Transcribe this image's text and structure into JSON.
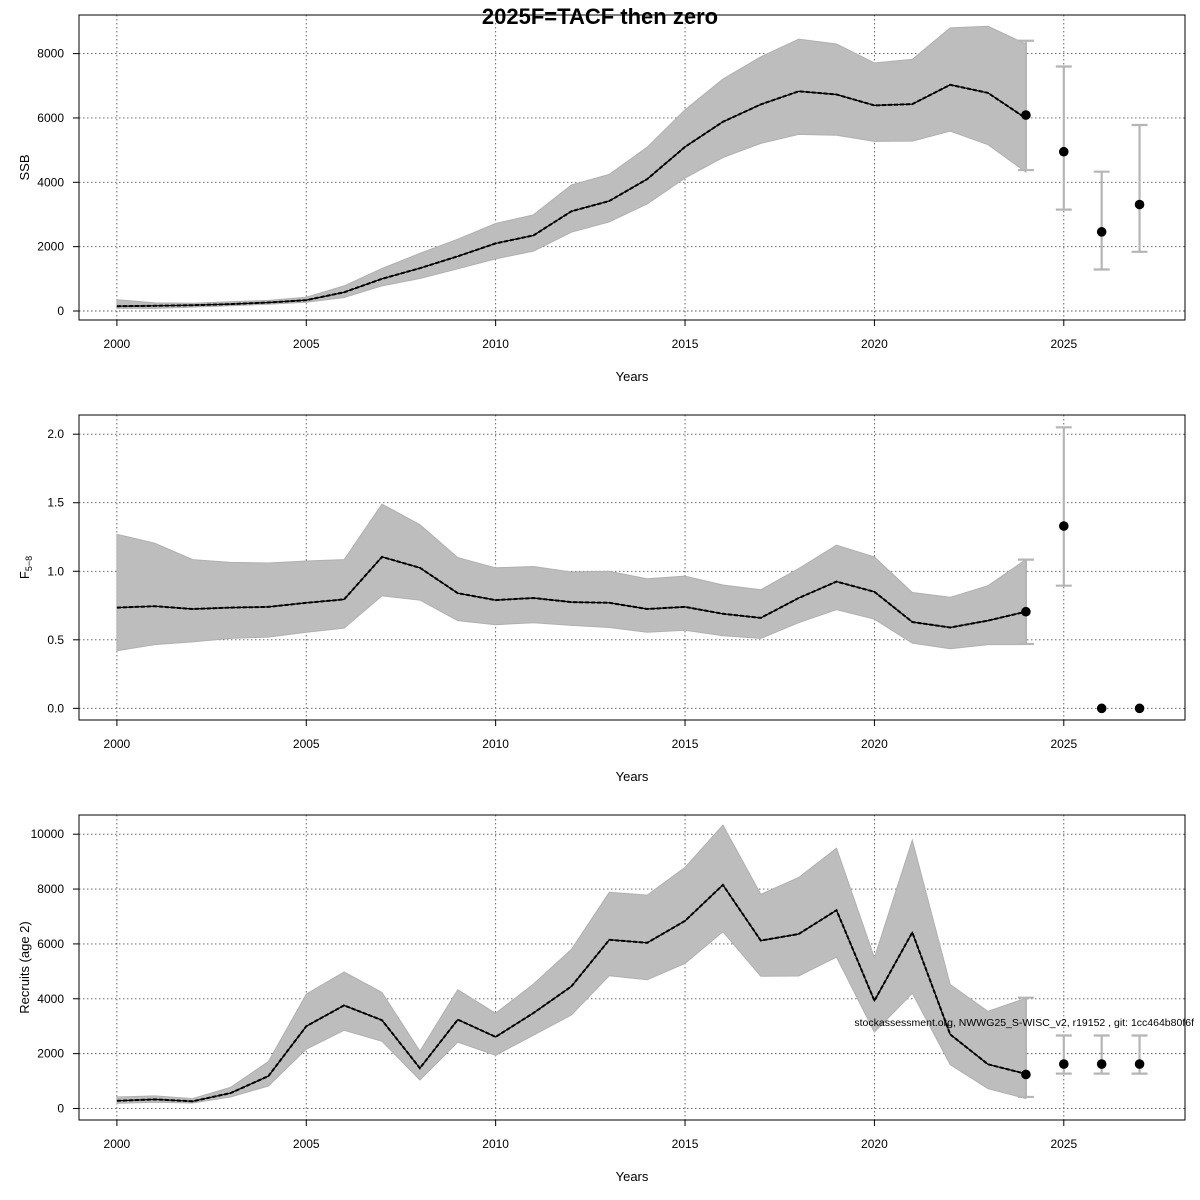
{
  "title": "2025F=TACF then zero",
  "footnote": "stockassessment.org, NWWG25_S-WISC_v2, r19152 , git: 1cc464b80f6f",
  "chart_data": [
    {
      "type": "line",
      "id": "ssb",
      "ylabel": "SSB",
      "xlabel": "Years",
      "xlim": [
        1999,
        2028.2
      ],
      "ylim": [
        -280,
        9200
      ],
      "xticks": [
        2000,
        2005,
        2010,
        2015,
        2020,
        2025
      ],
      "yticks": [
        0,
        2000,
        4000,
        6000,
        8000
      ],
      "ytick_labels": [
        "0",
        "2000",
        "4000",
        "6000",
        "8000"
      ],
      "grid": true,
      "x": [
        2000,
        2001,
        2002,
        2003,
        2004,
        2005,
        2006,
        2007,
        2008,
        2009,
        2010,
        2011,
        2012,
        2013,
        2014,
        2015,
        2016,
        2017,
        2018,
        2019,
        2020,
        2021,
        2022,
        2023,
        2024
      ],
      "estimate": [
        150,
        160,
        180,
        215,
        265,
        340,
        580,
        1000,
        1330,
        1700,
        2100,
        2350,
        3100,
        3420,
        4100,
        5100,
        5880,
        6420,
        6830,
        6730,
        6390,
        6430,
        7030,
        6780,
        5990
      ],
      "upper": [
        350,
        250,
        240,
        290,
        330,
        430,
        780,
        1320,
        1790,
        2230,
        2720,
        2990,
        3920,
        4250,
        5090,
        6250,
        7210,
        7900,
        8450,
        8300,
        7710,
        7820,
        8800,
        8850,
        8300
      ],
      "lower": [
        80,
        80,
        120,
        165,
        210,
        270,
        420,
        780,
        1010,
        1310,
        1620,
        1860,
        2450,
        2770,
        3330,
        4130,
        4770,
        5210,
        5490,
        5460,
        5270,
        5280,
        5590,
        5170,
        4320
      ],
      "forecast": {
        "x": [
          2024,
          2025,
          2026,
          2027
        ],
        "median": [
          6090,
          4950,
          2460,
          3310
        ],
        "low": [
          4380,
          3150,
          1290,
          1840
        ],
        "high": [
          8400,
          7600,
          4330,
          5780
        ]
      }
    },
    {
      "type": "line",
      "id": "fbar",
      "ylabel": "F̄5-8",
      "ylabel_main": "F",
      "ylabel_sub": "5−8",
      "xlabel": "Years",
      "xlim": [
        1999,
        2028.2
      ],
      "ylim": [
        -0.085,
        2.14
      ],
      "xticks": [
        2000,
        2005,
        2010,
        2015,
        2020,
        2025
      ],
      "yticks": [
        0.0,
        0.5,
        1.0,
        1.5,
        2.0
      ],
      "ytick_labels": [
        "0.0",
        "0.5",
        "1.0",
        "1.5",
        "2.0"
      ],
      "grid": true,
      "x": [
        2000,
        2001,
        2002,
        2003,
        2004,
        2005,
        2006,
        2007,
        2008,
        2009,
        2010,
        2011,
        2012,
        2013,
        2014,
        2015,
        2016,
        2017,
        2018,
        2019,
        2020,
        2021,
        2022,
        2023,
        2024
      ],
      "estimate": [
        0.735,
        0.745,
        0.725,
        0.735,
        0.74,
        0.77,
        0.795,
        1.105,
        1.025,
        0.84,
        0.79,
        0.805,
        0.775,
        0.77,
        0.725,
        0.74,
        0.69,
        0.66,
        0.805,
        0.925,
        0.85,
        0.63,
        0.59,
        0.64,
        0.705
      ],
      "upper": [
        1.27,
        1.205,
        1.085,
        1.065,
        1.06,
        1.075,
        1.085,
        1.49,
        1.34,
        1.1,
        1.025,
        1.035,
        0.995,
        1.0,
        0.945,
        0.965,
        0.9,
        0.865,
        1.02,
        1.19,
        1.105,
        0.845,
        0.81,
        0.895,
        1.085
      ],
      "lower": [
        0.42,
        0.465,
        0.485,
        0.51,
        0.52,
        0.555,
        0.585,
        0.82,
        0.79,
        0.64,
        0.61,
        0.625,
        0.605,
        0.59,
        0.555,
        0.57,
        0.53,
        0.51,
        0.625,
        0.72,
        0.65,
        0.475,
        0.435,
        0.465,
        0.465
      ],
      "forecast": {
        "x": [
          2024,
          2025,
          2026,
          2027
        ],
        "median": [
          0.705,
          1.33,
          0.0,
          0.0
        ],
        "low": [
          0.47,
          0.895,
          0.0,
          0.0
        ],
        "high": [
          1.085,
          2.05,
          0.0,
          0.0
        ]
      }
    },
    {
      "type": "line",
      "id": "recruits",
      "ylabel": "Recruits (age 2)",
      "xlabel": "Years",
      "xlim": [
        1999,
        2028.2
      ],
      "ylim": [
        -420,
        10700
      ],
      "xticks": [
        2000,
        2005,
        2010,
        2015,
        2020,
        2025
      ],
      "yticks": [
        0,
        2000,
        4000,
        6000,
        8000,
        10000
      ],
      "ytick_labels": [
        "0",
        "2000",
        "4000",
        "6000",
        "8000",
        "10000"
      ],
      "grid": true,
      "x": [
        2000,
        2001,
        2002,
        2003,
        2004,
        2005,
        2006,
        2007,
        2008,
        2009,
        2010,
        2011,
        2012,
        2013,
        2014,
        2015,
        2016,
        2017,
        2018,
        2019,
        2020,
        2021,
        2022,
        2023,
        2024
      ],
      "estimate": [
        280,
        330,
        260,
        560,
        1180,
        3000,
        3760,
        3220,
        1470,
        3240,
        2610,
        3480,
        4450,
        6150,
        6040,
        6840,
        8150,
        6120,
        6360,
        7230,
        3930,
        6420,
        2700,
        1610,
        1260
      ],
      "upper": [
        420,
        460,
        360,
        770,
        1710,
        4170,
        4980,
        4230,
        2090,
        4330,
        3470,
        4540,
        5800,
        7880,
        7780,
        8790,
        10330,
        7810,
        8420,
        9490,
        5500,
        9780,
        4520,
        3540,
        4020
      ],
      "lower": [
        190,
        230,
        200,
        420,
        820,
        2160,
        2850,
        2450,
        1040,
        2420,
        1940,
        2670,
        3410,
        4840,
        4690,
        5290,
        6440,
        4820,
        4830,
        5520,
        2780,
        4200,
        1600,
        720,
        360
      ],
      "forecast": {
        "x": [
          2024,
          2025,
          2026,
          2027
        ],
        "median": [
          1240,
          1620,
          1620,
          1620
        ],
        "low": [
          420,
          1270,
          1270,
          1270
        ],
        "high": [
          4040,
          2660,
          2660,
          2660
        ]
      }
    }
  ]
}
